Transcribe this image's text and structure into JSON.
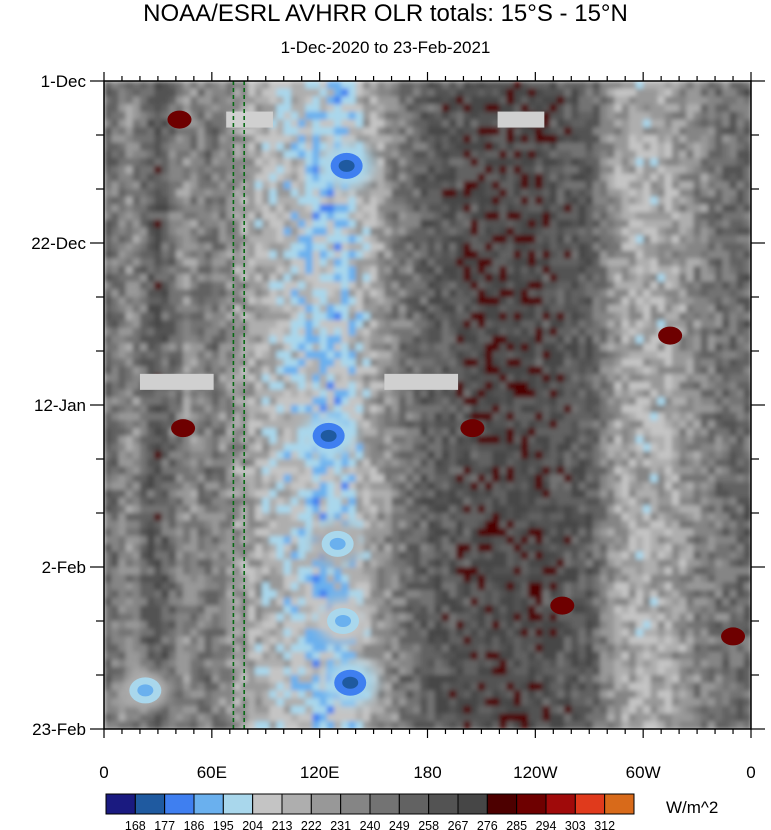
{
  "chart_data": {
    "type": "heatmap",
    "title": "NOAA/ESRL AVHRR OLR totals: 15°S - 15°N",
    "subtitle": "1-Dec-2020 to 23-Feb-2021",
    "xlabel": "",
    "ylabel": "",
    "x_range_deg_east": [
      0,
      360
    ],
    "y_range_days": [
      0,
      84
    ],
    "x_ticks": [
      {
        "label": "0",
        "lon": 0
      },
      {
        "label": "60E",
        "lon": 60
      },
      {
        "label": "120E",
        "lon": 120
      },
      {
        "label": "180",
        "lon": 180
      },
      {
        "label": "120W",
        "lon": 240
      },
      {
        "label": "60W",
        "lon": 300
      },
      {
        "label": "0",
        "lon": 360
      }
    ],
    "y_ticks": [
      {
        "label": "1-Dec",
        "day": 0
      },
      {
        "label": "22-Dec",
        "day": 21
      },
      {
        "label": "12-Jan",
        "day": 42
      },
      {
        "label": "2-Feb",
        "day": 63
      },
      {
        "label": "23-Feb",
        "day": 84
      }
    ],
    "colorbar": {
      "units": "W/m^2",
      "levels": [
        "168",
        "177",
        "186",
        "195",
        "204",
        "213",
        "222",
        "231",
        "240",
        "249",
        "258",
        "267",
        "276",
        "285",
        "294",
        "303",
        "312"
      ],
      "colors": [
        "#1a1a80",
        "#1f5aa0",
        "#3f7ff0",
        "#6ab0ee",
        "#a9d7ec",
        "#c4c4c4",
        "#aeaeae",
        "#989898",
        "#858585",
        "#737373",
        "#626262",
        "#535353",
        "#464646",
        "#4d0000",
        "#6e0000",
        "#a00a0a",
        "#e03a1c",
        "#d86a1a"
      ]
    },
    "olr_lon_profile_wm2": [
      {
        "lon": 0,
        "olr": 252
      },
      {
        "lon": 15,
        "olr": 232
      },
      {
        "lon": 30,
        "olr": 262
      },
      {
        "lon": 45,
        "olr": 232
      },
      {
        "lon": 60,
        "olr": 244
      },
      {
        "lon": 75,
        "olr": 226
      },
      {
        "lon": 90,
        "olr": 216
      },
      {
        "lon": 105,
        "olr": 208
      },
      {
        "lon": 120,
        "olr": 200
      },
      {
        "lon": 135,
        "olr": 202
      },
      {
        "lon": 150,
        "olr": 222
      },
      {
        "lon": 165,
        "olr": 242
      },
      {
        "lon": 180,
        "olr": 256
      },
      {
        "lon": 195,
        "olr": 262
      },
      {
        "lon": 210,
        "olr": 266
      },
      {
        "lon": 225,
        "olr": 268
      },
      {
        "lon": 240,
        "olr": 266
      },
      {
        "lon": 255,
        "olr": 262
      },
      {
        "lon": 270,
        "olr": 256
      },
      {
        "lon": 285,
        "olr": 226
      },
      {
        "lon": 300,
        "olr": 218
      },
      {
        "lon": 315,
        "olr": 222
      },
      {
        "lon": 330,
        "olr": 236
      },
      {
        "lon": 345,
        "olr": 246
      },
      {
        "lon": 360,
        "olr": 252
      }
    ],
    "convective_cores": [
      {
        "lon": 135,
        "day": 11,
        "olr": 172
      },
      {
        "lon": 125,
        "day": 46,
        "olr": 172
      },
      {
        "lon": 137,
        "day": 78,
        "olr": 172
      },
      {
        "lon": 133,
        "day": 70,
        "olr": 186
      },
      {
        "lon": 130,
        "day": 60,
        "olr": 190
      },
      {
        "lon": 23,
        "day": 79,
        "olr": 190
      }
    ],
    "dry_patches": [
      {
        "lon": 42,
        "day": 5,
        "olr": 285
      },
      {
        "lon": 44,
        "day": 45,
        "olr": 285
      },
      {
        "lon": 205,
        "day": 45,
        "olr": 288
      },
      {
        "lon": 255,
        "day": 68,
        "olr": 288
      },
      {
        "lon": 350,
        "day": 72,
        "olr": 288
      },
      {
        "lon": 315,
        "day": 33,
        "olr": 285
      }
    ],
    "missing_data_bars": [
      {
        "lon_start": 68,
        "lon_end": 94,
        "day": 5
      },
      {
        "lon_start": 219,
        "lon_end": 245,
        "day": 5
      },
      {
        "lon_start": 20,
        "lon_end": 61,
        "day": 39
      },
      {
        "lon_start": 156,
        "lon_end": 197,
        "day": 39
      }
    ],
    "reference_lines_lon": [
      72,
      78
    ]
  }
}
